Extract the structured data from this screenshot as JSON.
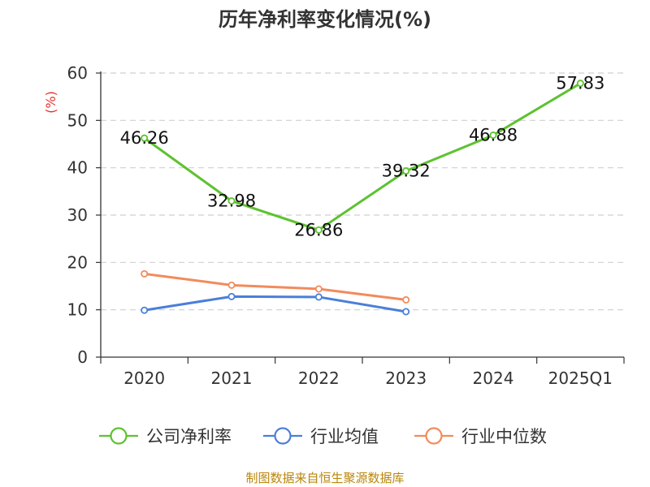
{
  "chart_data": {
    "type": "line",
    "title": "历年净利率变化情况(%)",
    "ylabel": "(%)",
    "xlabel": "",
    "categories": [
      "2020",
      "2021",
      "2022",
      "2023",
      "2024",
      "2025Q1"
    ],
    "ylim": [
      0,
      60
    ],
    "yticks": [
      0,
      10,
      20,
      30,
      40,
      50,
      60
    ],
    "grid": true,
    "legend_position": "bottom",
    "series": [
      {
        "name": "公司净利率",
        "color": "#5dc22f",
        "values": [
          46.26,
          32.98,
          26.86,
          39.32,
          46.88,
          57.83
        ],
        "labels": [
          "46.26",
          "32.98",
          "26.86",
          "39.32",
          "46.88",
          "57.83"
        ]
      },
      {
        "name": "行业均值",
        "color": "#4a7fd9",
        "values": [
          9.9,
          12.8,
          12.7,
          9.6,
          null,
          null
        ]
      },
      {
        "name": "行业中位数",
        "color": "#f28b5b",
        "values": [
          17.6,
          15.2,
          14.4,
          12.1,
          null,
          null
        ]
      }
    ]
  },
  "source": "制图数据来自恒生聚源数据库"
}
